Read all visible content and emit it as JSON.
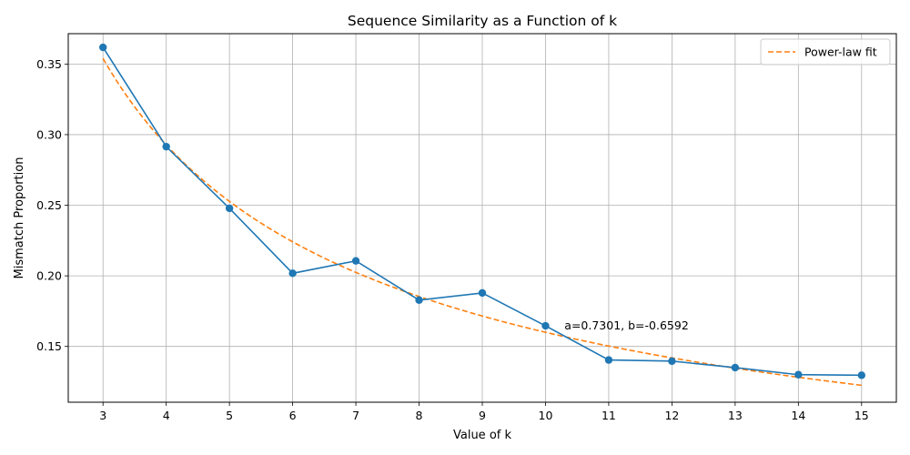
{
  "chart_data": {
    "type": "line",
    "title": "Sequence Similarity as a Function of k",
    "xlabel": "Value of k",
    "ylabel": "Mismatch Proportion",
    "xlim": [
      2.45,
      15.55
    ],
    "ylim": [
      0.1105,
      0.3715
    ],
    "xticks": [
      3,
      4,
      5,
      6,
      7,
      8,
      9,
      10,
      11,
      12,
      13,
      14,
      15
    ],
    "yticks": [
      0.15,
      0.2,
      0.25,
      0.3,
      0.35
    ],
    "ytick_labels": [
      "0.15",
      "0.20",
      "0.25",
      "0.30",
      "0.35"
    ],
    "grid": true,
    "legend_position": "top-right",
    "series": [
      {
        "name": "",
        "style": "solid-with-markers",
        "color": "#1f77b4",
        "x": [
          3,
          4,
          5,
          6,
          7,
          8,
          9,
          10,
          11,
          12,
          13,
          14,
          15
        ],
        "y": [
          0.3618,
          0.2915,
          0.2478,
          0.2018,
          0.2106,
          0.1828,
          0.1879,
          0.1646,
          0.1404,
          0.1396,
          0.135,
          0.13,
          0.1296
        ]
      },
      {
        "name": "Power-law fit",
        "style": "dashed",
        "color": "#ff7f0e",
        "fit": {
          "a": 0.7301,
          "b": -0.6592
        }
      }
    ],
    "annotation": {
      "text": "a=0.7301, b=-0.6592",
      "x": 10.3,
      "y": 0.1646
    }
  }
}
